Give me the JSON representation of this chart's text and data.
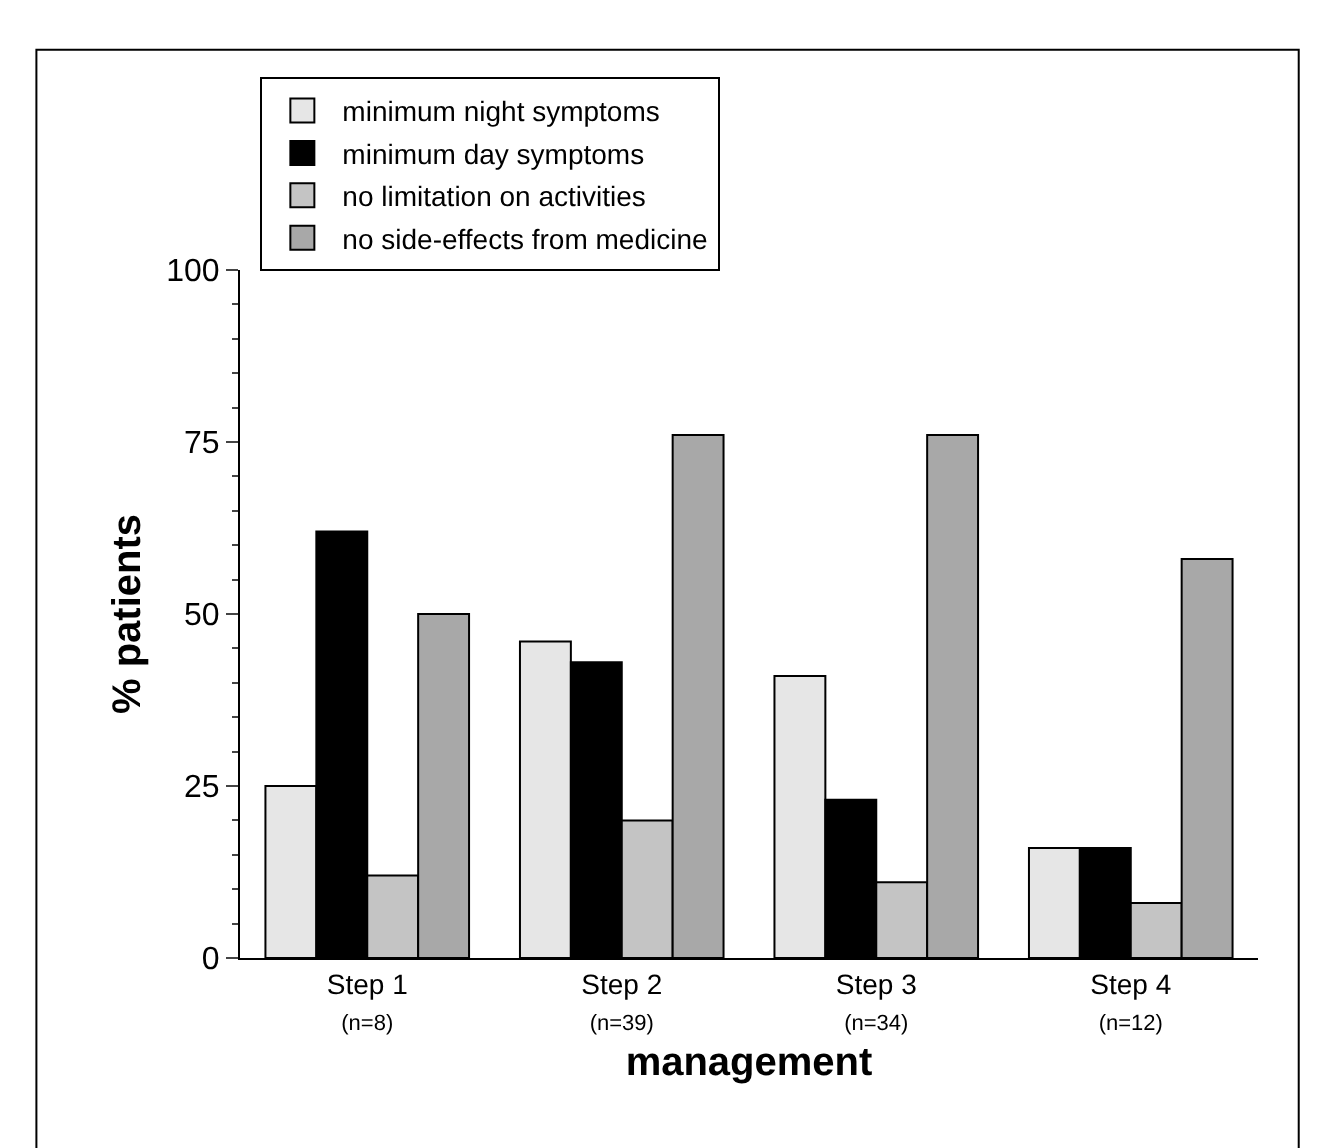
{
  "chart_data": {
    "type": "bar",
    "xlabel": "management",
    "ylabel": "% patients",
    "categories": [
      "Step 1\n(n=8)",
      "Step 2\n(n=39)",
      "Step 3\n(n=34)",
      "Step 4\n(n=12)"
    ],
    "series": [
      {
        "name": "minimum night symptoms",
        "color": "#e6e6e6",
        "values": [
          25,
          46,
          41,
          16
        ]
      },
      {
        "name": "minimum day symptoms",
        "color": "#000000",
        "values": [
          62,
          43,
          23,
          16
        ]
      },
      {
        "name": "no limitation on activities",
        "color": "#c4c4c4",
        "values": [
          12,
          20,
          11,
          8
        ]
      },
      {
        "name": "no side-effects from medicine",
        "color": "#a8a8a8",
        "values": [
          50,
          76,
          76,
          58
        ]
      }
    ],
    "ylim": [
      0,
      100
    ],
    "yticks": [
      0,
      25,
      50,
      75,
      100
    ],
    "grid": false,
    "legend": "top left"
  }
}
